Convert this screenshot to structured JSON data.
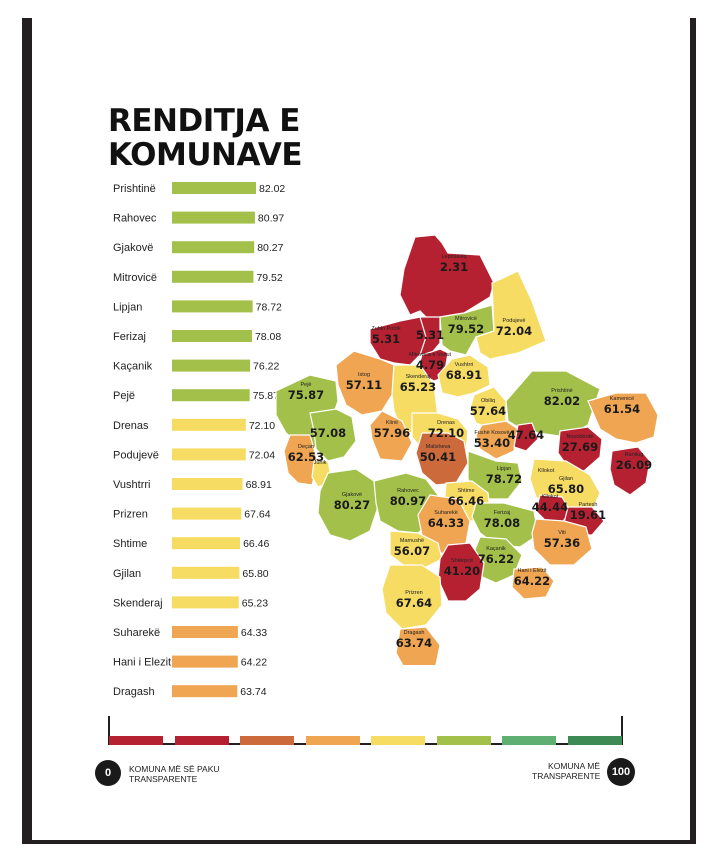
{
  "title": {
    "line1": "RENDITJA E",
    "line2": "KOMUNAVE"
  },
  "colors": {
    "green": "#a3c14a",
    "yellow": "#f6dc63",
    "orange": "#efa552",
    "red": "#b52131",
    "orange_red": "#cd6a3c",
    "light_green": "#5faf72",
    "dark_green": "#3d8a55"
  },
  "chart_data": [
    {
      "type": "bar",
      "orientation": "horizontal",
      "categories": [
        "Prishtinë",
        "Rahovec",
        "Gjakovë",
        "Mitrovicë",
        "Lipjan",
        "Ferizaj",
        "Kaçanik",
        "Pejë",
        "Drenas",
        "Podujevë",
        "Vushtrri",
        "Prizren",
        "Shtime",
        "Gjilan",
        "Skenderaj",
        "Suharekë",
        "Hani i Elezit",
        "Dragash"
      ],
      "values": [
        82.02,
        80.97,
        80.27,
        79.52,
        78.72,
        78.08,
        76.22,
        75.87,
        72.1,
        72.04,
        68.91,
        67.64,
        66.46,
        65.8,
        65.23,
        64.33,
        64.22,
        63.74
      ],
      "value_labels": [
        "82.02",
        "80.97",
        "80.27",
        "79.52",
        "78.72",
        "78.08",
        "76.22",
        "75.87",
        "72.10",
        "72.04",
        "68.91",
        "67.64",
        "66.46",
        "65.80",
        "65.23",
        "64.33",
        "64.22",
        "63.74"
      ],
      "bar_colors": [
        "#a3c14a",
        "#a3c14a",
        "#a3c14a",
        "#a3c14a",
        "#a3c14a",
        "#a3c14a",
        "#a3c14a",
        "#a3c14a",
        "#f6dc63",
        "#f6dc63",
        "#f6dc63",
        "#f6dc63",
        "#f6dc63",
        "#f6dc63",
        "#f6dc63",
        "#efa552",
        "#efa552",
        "#efa552"
      ],
      "grid": false,
      "legend": "none"
    },
    {
      "type": "choropleth",
      "regions": [
        {
          "name": "Leposaviq",
          "value": "2.31",
          "color": "#b52131"
        },
        {
          "name": "Zubin Potok",
          "value": "5.31",
          "color": "#b52131"
        },
        {
          "name": "",
          "value": "5.31",
          "color": "#b52131"
        },
        {
          "name": "Mitrovicë",
          "value": "79.52",
          "color": "#a3c14a"
        },
        {
          "name": "Mitrovica e Veriut",
          "value": "4.79",
          "color": "#b52131"
        },
        {
          "name": "Podujevë",
          "value": "72.04",
          "color": "#f6dc63"
        },
        {
          "name": "Istog",
          "value": "57.11",
          "color": "#efa552"
        },
        {
          "name": "Skenderaj",
          "value": "65.23",
          "color": "#f6dc63"
        },
        {
          "name": "Vushtrri",
          "value": "68.91",
          "color": "#f6dc63"
        },
        {
          "name": "Pejë",
          "value": "75.87",
          "color": "#a3c14a"
        },
        {
          "name": "Obiliq",
          "value": "57.64",
          "color": "#f6dc63"
        },
        {
          "name": "Prishtinë",
          "value": "82.02",
          "color": "#a3c14a"
        },
        {
          "name": "",
          "value": "57.08",
          "color": "#a3c14a"
        },
        {
          "name": "Klinë",
          "value": "57.96",
          "color": "#efa552"
        },
        {
          "name": "Drenas",
          "value": "72.10",
          "color": "#f6dc63"
        },
        {
          "name": "Fushë Kosovë",
          "value": "53.40",
          "color": "#efa552"
        },
        {
          "name": "",
          "value": "47.64",
          "color": "#b52131"
        },
        {
          "name": "Kamenicë",
          "value": "61.54",
          "color": "#efa552"
        },
        {
          "name": "Deçan",
          "value": "62.53",
          "color": "#efa552"
        },
        {
          "name": "Junik",
          "value": "",
          "color": "#f6dc63"
        },
        {
          "name": "Malisheva",
          "value": "50.41",
          "color": "#cd6a3c"
        },
        {
          "name": "Lipjan",
          "value": "78.72",
          "color": "#a3c14a"
        },
        {
          "name": "Novobërdë",
          "value": "27.69",
          "color": "#b52131"
        },
        {
          "name": "Kllokot",
          "value": "",
          "color": "#efa552"
        },
        {
          "name": "Ranilug",
          "value": "26.09",
          "color": "#b52131"
        },
        {
          "name": "Gjakovë",
          "value": "80.27",
          "color": "#a3c14a"
        },
        {
          "name": "Rahovec",
          "value": "80.97",
          "color": "#a3c14a"
        },
        {
          "name": "Shtime",
          "value": "66.46",
          "color": "#f6dc63"
        },
        {
          "name": "Gjilan",
          "value": "65.80",
          "color": "#f6dc63"
        },
        {
          "name": "Suharekë",
          "value": "64.33",
          "color": "#efa552"
        },
        {
          "name": "Ferizaj",
          "value": "78.08",
          "color": "#a3c14a"
        },
        {
          "name": "Kllokot",
          "value": "44.44",
          "color": "#b52131"
        },
        {
          "name": "Partesh",
          "value": "19.61",
          "color": "#b52131"
        },
        {
          "name": "Mamushë",
          "value": "56.07",
          "color": "#f6dc63"
        },
        {
          "name": "Viti",
          "value": "57.36",
          "color": "#efa552"
        },
        {
          "name": "Kaçanik",
          "value": "76.22",
          "color": "#a3c14a"
        },
        {
          "name": "Shtërpcë",
          "value": "41.20",
          "color": "#b52131"
        },
        {
          "name": "Prizren",
          "value": "67.64",
          "color": "#f6dc63"
        },
        {
          "name": "Hani i Elezit",
          "value": "64.22",
          "color": "#efa552"
        },
        {
          "name": "Dragash",
          "value": "63.74",
          "color": "#efa552"
        }
      ]
    }
  ],
  "legend": {
    "swatches": [
      "#b52131",
      "#b52131",
      "#cd6a3c",
      "#efa552",
      "#f6dc63",
      "#a3c14a",
      "#5faf72",
      "#3d8a55"
    ],
    "min_value": "0",
    "max_value": "100",
    "min_label_1": "KOMUNA MË SË PAKU",
    "min_label_2": "TRANSPARENTE",
    "max_label_1": "KOMUNA MË",
    "max_label_2": "TRANSPARENTE"
  }
}
